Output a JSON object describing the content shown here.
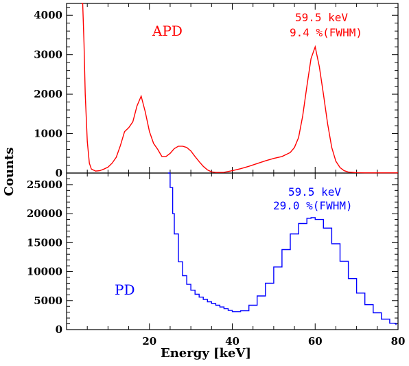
{
  "chart_data": [
    {
      "panel": "top",
      "type": "line",
      "series": [
        {
          "name": "APD",
          "color": "#ff0000",
          "x": [
            3.6,
            3.9,
            4.2,
            4.5,
            5,
            5.5,
            6,
            7,
            8,
            9,
            10,
            11,
            12,
            13,
            14,
            15,
            16,
            17,
            18,
            19,
            20,
            21,
            22,
            23,
            24,
            25,
            26,
            27,
            28,
            29,
            30,
            31,
            32,
            33,
            34,
            35,
            36,
            38,
            40,
            42,
            44,
            46,
            48,
            50,
            52,
            54,
            55,
            56,
            57,
            58,
            59,
            60,
            61,
            62,
            63,
            64,
            65,
            66,
            67,
            68,
            70,
            72,
            75,
            80
          ],
          "y": [
            4300,
            4300,
            3300,
            2000,
            800,
            250,
            100,
            50,
            60,
            100,
            150,
            250,
            400,
            700,
            1050,
            1150,
            1300,
            1700,
            1950,
            1550,
            1050,
            750,
            600,
            420,
            420,
            500,
            620,
            680,
            680,
            650,
            560,
            420,
            290,
            170,
            80,
            30,
            15,
            20,
            60,
            110,
            170,
            240,
            310,
            370,
            420,
            520,
            650,
            900,
            1450,
            2200,
            2900,
            3200,
            2700,
            2000,
            1250,
            650,
            300,
            140,
            60,
            25,
            10,
            5,
            5,
            5
          ]
        }
      ],
      "xlim": [
        0,
        80
      ],
      "ylim": [
        0,
        4300
      ],
      "yticks": [
        0,
        1000,
        2000,
        3000,
        4000
      ],
      "annotations": [
        "APD",
        "59.5 keV",
        "9.4 %(FWHM)"
      ]
    },
    {
      "panel": "bottom",
      "type": "line",
      "series": [
        {
          "name": "PD",
          "color": "#0000ff",
          "step": true,
          "x": [
            24.5,
            25,
            25.6,
            26,
            27,
            28,
            29,
            30,
            31,
            32,
            33,
            34,
            35,
            36,
            37,
            38,
            39,
            40,
            41,
            42,
            44,
            46,
            48,
            50,
            52,
            54,
            56,
            58,
            59,
            60,
            62,
            64,
            66,
            68,
            70,
            72,
            74,
            76,
            78,
            79.5
          ],
          "y": [
            27000,
            24500,
            20000,
            16500,
            11700,
            9300,
            7800,
            6800,
            6100,
            5600,
            5200,
            4800,
            4500,
            4200,
            3900,
            3600,
            3300,
            3100,
            3100,
            3250,
            4200,
            5800,
            8000,
            10800,
            13800,
            16500,
            18300,
            19200,
            19300,
            19000,
            17500,
            14800,
            11800,
            8800,
            6300,
            4300,
            2900,
            1800,
            1100,
            800
          ]
        }
      ],
      "xlim": [
        0,
        80
      ],
      "ylim": [
        0,
        27000
      ],
      "yticks": [
        0,
        5000,
        10000,
        15000,
        20000,
        25000
      ],
      "xticks": [
        20,
        40,
        60,
        80
      ],
      "annotations": [
        "PD",
        "59.5 keV",
        "29.0 %(FWHM)"
      ]
    }
  ],
  "labels": {
    "apd": "APD",
    "apd_energy": "59.5 keV",
    "apd_fwhm": "9.4 %(FWHM)",
    "pd": "PD",
    "pd_energy": "59.5 keV",
    "pd_fwhm": "29.0 %(FWHM)",
    "xlabel": "Energy [keV]",
    "ylabel": "Counts"
  }
}
